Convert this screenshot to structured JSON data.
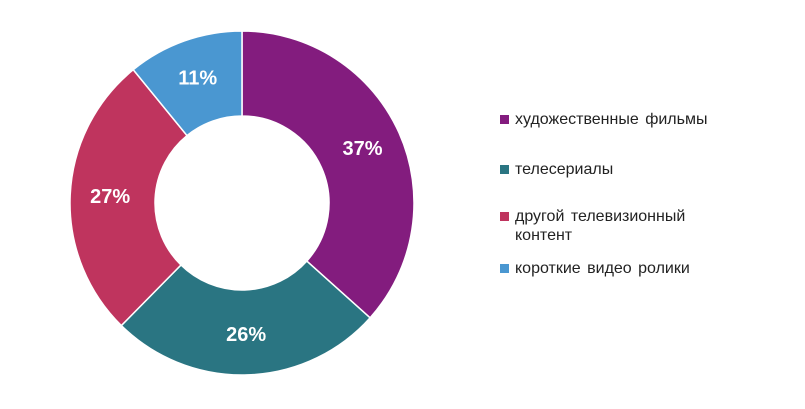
{
  "chart_data": {
    "type": "pie",
    "donut": true,
    "title": "",
    "legend_position": "right",
    "series": [
      {
        "name": "художественные  фильмы",
        "value": 37,
        "label": "37%",
        "color": "#831c7e"
      },
      {
        "name": "телесериалы",
        "value": 26,
        "label": "26%",
        "color": "#2a7582"
      },
      {
        "name": "другой телевизионный контент",
        "value": 27,
        "label": "27%",
        "color": "#bf345e"
      },
      {
        "name": "короткие видео ролики",
        "value": 11,
        "label": "11%",
        "color": "#4a97d1"
      }
    ]
  }
}
